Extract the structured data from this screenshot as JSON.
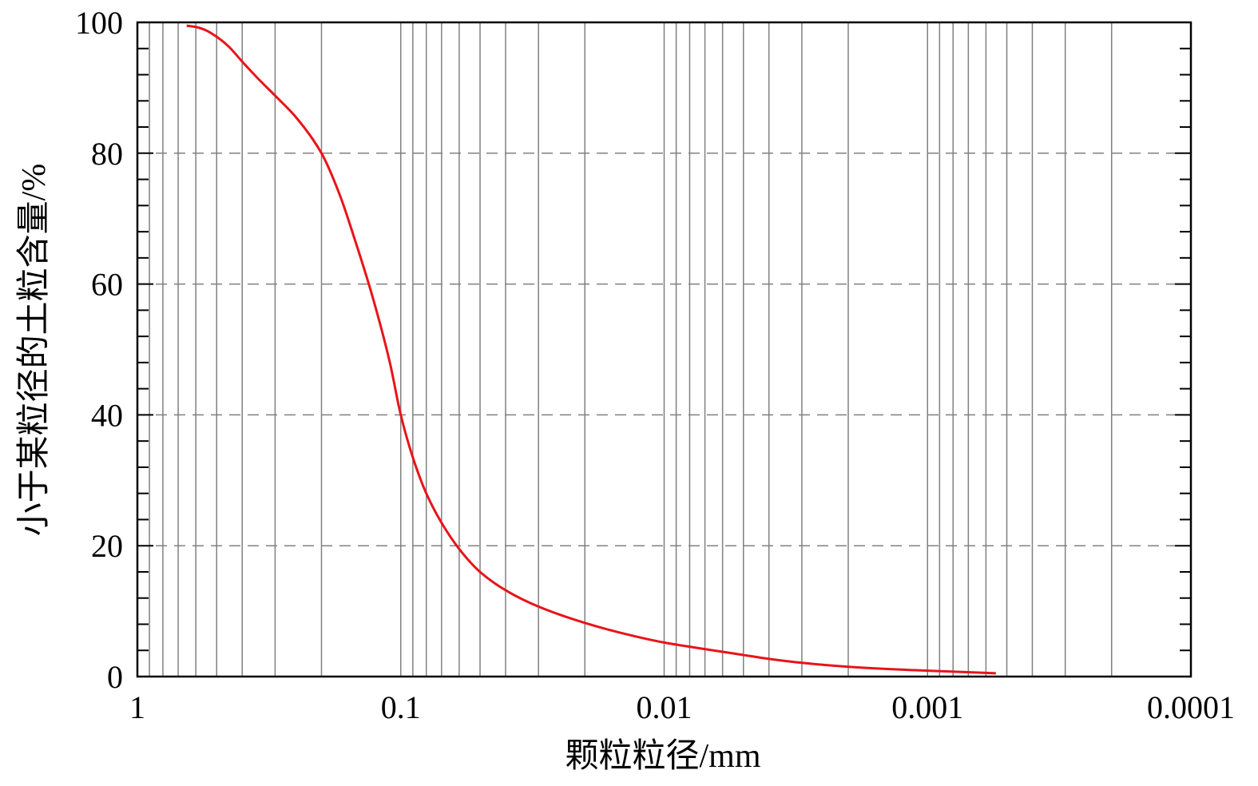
{
  "chart_data": {
    "type": "line",
    "xlabel": "颗粒粒径/mm",
    "ylabel": "小于某粒径的土粒含量/%",
    "x_scale": "log",
    "x_reversed": true,
    "xlim": [
      1,
      0.0001
    ],
    "ylim": [
      0,
      100
    ],
    "x_ticks": [
      1,
      0.1,
      0.01,
      0.001,
      0.0001
    ],
    "x_tick_labels": [
      "1",
      "0.1",
      "0.01",
      "0.001",
      "0.0001"
    ],
    "y_ticks": [
      0,
      20,
      40,
      60,
      80,
      100
    ],
    "y_tick_labels": [
      "0",
      "20",
      "40",
      "60",
      "80",
      "100"
    ],
    "y_minor_step": 4,
    "grid": {
      "vertical_log_minor": true,
      "horizontal_dashed": [
        20,
        40,
        60,
        80
      ]
    },
    "line_color": "#e8141a",
    "grid_color": "#808080",
    "series": [
      {
        "x": [
          0.65,
          0.6,
          0.55,
          0.5,
          0.45,
          0.4,
          0.35,
          0.3,
          0.25,
          0.2,
          0.17,
          0.15,
          0.13,
          0.11,
          0.1,
          0.09,
          0.08,
          0.07,
          0.06,
          0.05,
          0.04,
          0.03,
          0.02,
          0.015,
          0.01,
          0.007,
          0.005,
          0.004,
          0.003,
          0.002,
          0.0015,
          0.001,
          0.00055
        ],
        "y": [
          99.5,
          99.3,
          98.8,
          97.8,
          96.3,
          94.0,
          91.5,
          88.8,
          85.5,
          80.0,
          73.5,
          67.0,
          59.0,
          48.0,
          40.0,
          33.5,
          28.0,
          23.5,
          19.5,
          16.0,
          13.2,
          10.7,
          8.2,
          6.8,
          5.2,
          4.2,
          3.3,
          2.7,
          2.1,
          1.5,
          1.2,
          0.9,
          0.5
        ]
      }
    ]
  }
}
